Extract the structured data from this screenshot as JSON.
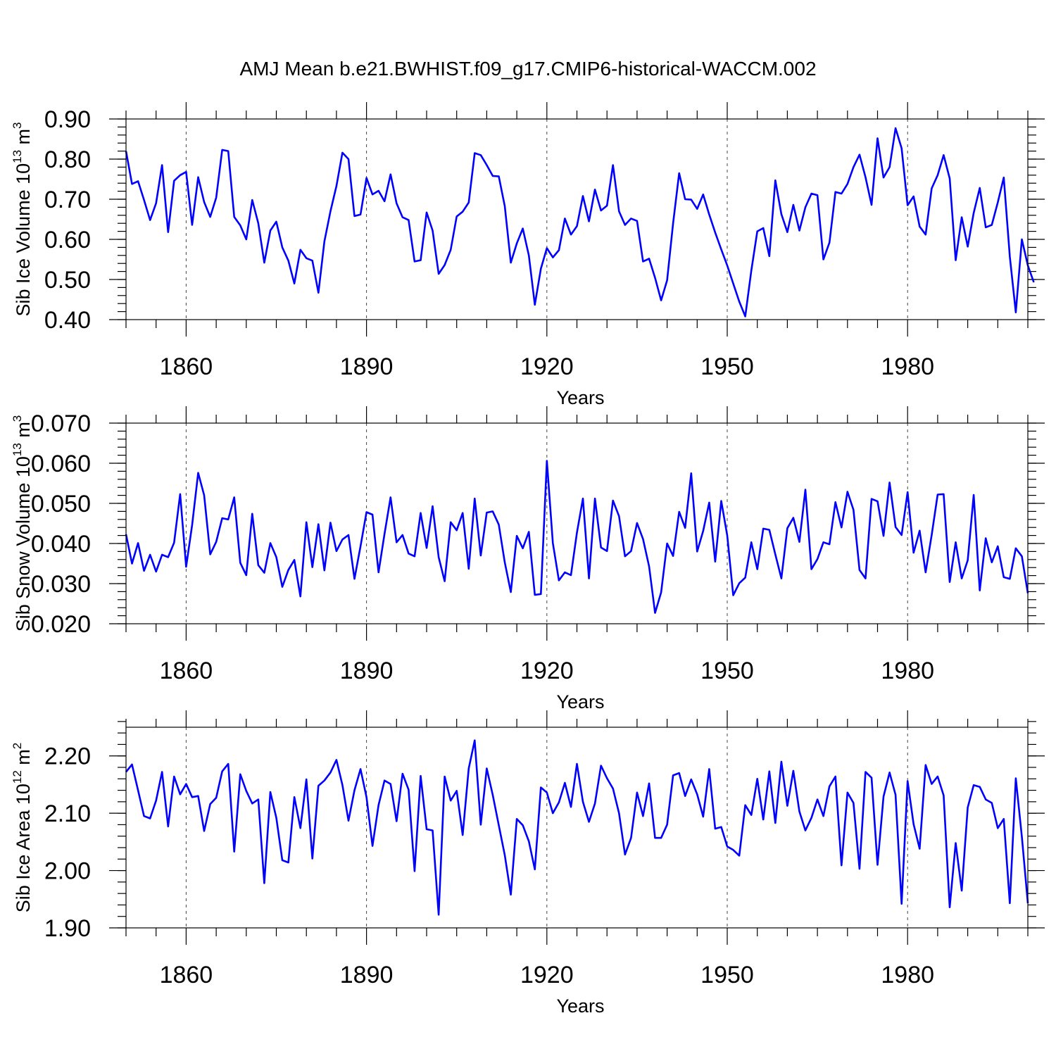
{
  "title": "AMJ Mean b.e21.BWHIST.f09_g17.CMIP6-historical-WACCM.002",
  "chart_data": [
    {
      "type": "line",
      "ylabel": "Sib Ice Volume 10",
      "ylabel_exp": "13",
      "ylabel_unit": " m",
      "ylabel_unit_exp": "3",
      "xlabel": "Years",
      "xlim": [
        1850,
        2000
      ],
      "ylim": [
        0.4,
        0.9
      ],
      "x_major_ticks": [
        1860,
        1890,
        1920,
        1950,
        1980
      ],
      "x_tick_labels": [
        "1860",
        "1890",
        "1920",
        "1950",
        "1980"
      ],
      "y_major_ticks": [
        0.4,
        0.5,
        0.6,
        0.7,
        0.8,
        0.9
      ],
      "y_tick_labels": [
        "0.40",
        "0.50",
        "0.60",
        "0.70",
        "0.80",
        "0.90"
      ],
      "y_minor_step": 0.02,
      "x_start": 1850,
      "values": [
        0.82,
        0.738,
        0.745,
        0.698,
        0.648,
        0.69,
        0.785,
        0.618,
        0.746,
        0.76,
        0.768,
        0.636,
        0.755,
        0.693,
        0.656,
        0.704,
        0.823,
        0.82,
        0.656,
        0.635,
        0.6,
        0.698,
        0.64,
        0.542,
        0.622,
        0.644,
        0.58,
        0.547,
        0.49,
        0.574,
        0.553,
        0.547,
        0.467,
        0.595,
        0.67,
        0.733,
        0.816,
        0.8,
        0.658,
        0.662,
        0.753,
        0.712,
        0.721,
        0.695,
        0.762,
        0.69,
        0.655,
        0.648,
        0.545,
        0.548,
        0.667,
        0.622,
        0.514,
        0.536,
        0.574,
        0.657,
        0.669,
        0.692,
        0.815,
        0.81,
        0.785,
        0.758,
        0.757,
        0.683,
        0.542,
        0.59,
        0.627,
        0.56,
        0.437,
        0.527,
        0.578,
        0.555,
        0.573,
        0.652,
        0.612,
        0.633,
        0.708,
        0.645,
        0.724,
        0.672,
        0.684,
        0.785,
        0.67,
        0.636,
        0.652,
        0.646,
        0.545,
        0.552,
        0.504,
        0.448,
        0.498,
        0.64,
        0.765,
        0.7,
        0.699,
        0.676,
        0.712,
        0.662,
        0.617,
        0.575,
        0.535,
        0.49,
        0.445,
        0.408,
        0.522,
        0.62,
        0.628,
        0.558,
        0.747,
        0.663,
        0.618,
        0.686,
        0.622,
        0.68,
        0.714,
        0.71,
        0.55,
        0.592,
        0.718,
        0.714,
        0.738,
        0.78,
        0.811,
        0.755,
        0.686,
        0.852,
        0.754,
        0.78,
        0.877,
        0.827,
        0.685,
        0.707,
        0.632,
        0.612,
        0.727,
        0.76,
        0.81,
        0.752,
        0.548,
        0.655,
        0.582,
        0.666,
        0.728,
        0.63,
        0.636,
        0.692,
        0.754,
        0.557,
        0.418,
        0.6,
        0.535,
        0.493
      ]
    },
    {
      "type": "line",
      "ylabel": "Sib Snow Volume 10",
      "ylabel_exp": "13",
      "ylabel_unit": " m",
      "ylabel_unit_exp": "3",
      "xlabel": "Years",
      "xlim": [
        1850,
        2000
      ],
      "ylim": [
        0.02,
        0.07
      ],
      "x_major_ticks": [
        1860,
        1890,
        1920,
        1950,
        1980
      ],
      "x_tick_labels": [
        "1860",
        "1890",
        "1920",
        "1950",
        "1980"
      ],
      "y_major_ticks": [
        0.02,
        0.03,
        0.04,
        0.05,
        0.06,
        0.07
      ],
      "y_tick_labels": [
        "0.020",
        "0.030",
        "0.040",
        "0.050",
        "0.060",
        "0.070"
      ],
      "y_minor_step": 0.002,
      "x_start": 1850,
      "values": [
        0.0423,
        0.035,
        0.0401,
        0.0332,
        0.0372,
        0.033,
        0.0372,
        0.0366,
        0.0402,
        0.0523,
        0.0342,
        0.0446,
        0.0576,
        0.052,
        0.0373,
        0.0404,
        0.0463,
        0.046,
        0.0515,
        0.0352,
        0.0321,
        0.0474,
        0.0346,
        0.0327,
        0.0401,
        0.0366,
        0.0292,
        0.0334,
        0.0359,
        0.0268,
        0.0453,
        0.0341,
        0.0448,
        0.0333,
        0.0452,
        0.0381,
        0.041,
        0.0421,
        0.0312,
        0.0393,
        0.0478,
        0.0472,
        0.0328,
        0.0424,
        0.0515,
        0.0403,
        0.0421,
        0.0375,
        0.0368,
        0.0476,
        0.0389,
        0.0493,
        0.0366,
        0.0306,
        0.0453,
        0.0433,
        0.0476,
        0.0337,
        0.0512,
        0.037,
        0.0477,
        0.048,
        0.0447,
        0.0353,
        0.0279,
        0.0419,
        0.0388,
        0.0429,
        0.0272,
        0.0274,
        0.0606,
        0.0401,
        0.0308,
        0.0328,
        0.0321,
        0.0427,
        0.0512,
        0.0313,
        0.0512,
        0.039,
        0.0381,
        0.0507,
        0.0468,
        0.0368,
        0.0381,
        0.0451,
        0.0411,
        0.0343,
        0.0227,
        0.0278,
        0.04,
        0.0369,
        0.0479,
        0.0439,
        0.0575,
        0.038,
        0.0431,
        0.0502,
        0.0355,
        0.0506,
        0.042,
        0.0271,
        0.0301,
        0.0315,
        0.0403,
        0.0336,
        0.0437,
        0.0434,
        0.0373,
        0.0313,
        0.0438,
        0.0464,
        0.0404,
        0.0534,
        0.0336,
        0.0361,
        0.0403,
        0.0398,
        0.0503,
        0.044,
        0.0529,
        0.0484,
        0.0334,
        0.0313,
        0.0511,
        0.0505,
        0.0419,
        0.0552,
        0.0441,
        0.0421,
        0.0528,
        0.0377,
        0.0432,
        0.0328,
        0.0421,
        0.0522,
        0.0523,
        0.0304,
        0.0403,
        0.0313,
        0.0358,
        0.0521,
        0.0283,
        0.0413,
        0.0353,
        0.0393,
        0.0316,
        0.0312,
        0.0388,
        0.0368,
        0.0276
      ]
    },
    {
      "type": "line",
      "ylabel": "Sib Ice Area 10",
      "ylabel_exp": "12",
      "ylabel_unit": " m",
      "ylabel_unit_exp": "2",
      "xlabel": "Years",
      "xlim": [
        1850,
        2000
      ],
      "ylim": [
        1.9,
        2.25
      ],
      "x_major_ticks": [
        1860,
        1890,
        1920,
        1950,
        1980
      ],
      "x_tick_labels": [
        "1860",
        "1890",
        "1920",
        "1950",
        "1980"
      ],
      "y_major_ticks": [
        1.9,
        2.0,
        2.1,
        2.2
      ],
      "y_tick_labels": [
        "1.90",
        "2.00",
        "2.10",
        "2.20"
      ],
      "y_minor_step": 0.02,
      "x_start": 1850,
      "values": [
        2.172,
        2.185,
        2.14,
        2.095,
        2.091,
        2.122,
        2.172,
        2.077,
        2.164,
        2.133,
        2.151,
        2.128,
        2.13,
        2.069,
        2.116,
        2.127,
        2.173,
        2.186,
        2.033,
        2.168,
        2.139,
        2.117,
        2.124,
        1.978,
        2.137,
        2.092,
        2.018,
        2.014,
        2.128,
        2.074,
        2.159,
        2.021,
        2.148,
        2.157,
        2.171,
        2.193,
        2.149,
        2.087,
        2.14,
        2.177,
        2.128,
        2.043,
        2.114,
        2.157,
        2.151,
        2.086,
        2.169,
        2.141,
        1.999,
        2.165,
        2.072,
        2.07,
        1.923,
        2.164,
        2.122,
        2.139,
        2.062,
        2.178,
        2.227,
        2.08,
        2.178,
        2.132,
        2.079,
        2.027,
        1.958,
        2.09,
        2.079,
        2.051,
        2.002,
        2.145,
        2.136,
        2.1,
        2.119,
        2.153,
        2.111,
        2.186,
        2.12,
        2.085,
        2.117,
        2.183,
        2.161,
        2.143,
        2.1,
        2.028,
        2.057,
        2.136,
        2.095,
        2.152,
        2.057,
        2.057,
        2.08,
        2.166,
        2.17,
        2.13,
        2.159,
        2.133,
        2.094,
        2.177,
        2.073,
        2.076,
        2.042,
        2.036,
        2.026,
        2.114,
        2.097,
        2.16,
        2.089,
        2.173,
        2.083,
        2.19,
        2.113,
        2.174,
        2.103,
        2.07,
        2.092,
        2.124,
        2.095,
        2.147,
        2.164,
        2.009,
        2.136,
        2.118,
        2.003,
        2.172,
        2.162,
        2.01,
        2.129,
        2.171,
        2.132,
        1.942,
        2.156,
        2.081,
        2.038,
        2.184,
        2.151,
        2.164,
        2.131,
        1.936,
        2.048,
        1.965,
        2.11,
        2.149,
        2.146,
        2.124,
        2.118,
        2.074,
        2.09,
        1.943,
        2.161,
        2.059,
        1.943
      ]
    }
  ]
}
